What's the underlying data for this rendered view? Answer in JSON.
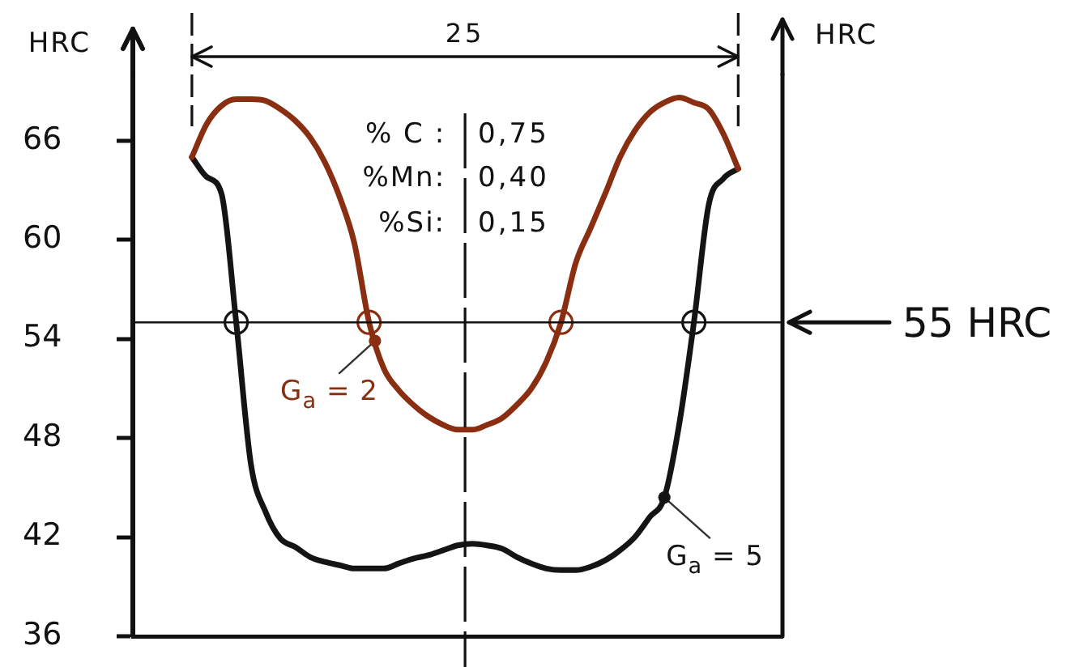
{
  "chart_data": {
    "type": "line",
    "ylabel": "HRC",
    "y2label": "HRC",
    "annotations": [
      "25",
      "% C :",
      "0,75",
      "%Mn:",
      "0,40",
      "%Si:",
      "0,15"
    ],
    "categories": [
      null,
      null,
      null,
      null,
      null,
      null,
      null,
      null,
      null,
      null,
      null,
      null,
      null,
      null,
      null,
      null,
      null,
      null,
      null,
      null,
      null,
      null,
      null,
      null,
      null,
      null,
      null,
      null,
      null,
      null,
      null,
      null,
      null,
      null,
      null,
      null,
      null,
      null,
      null,
      null,
      null,
      null,
      null,
      null,
      null
    ],
    "series": [
      {
        "name": "G$_{a}$ = 2",
        "color": "#8a2e12",
        "values": [
          null,
          null,
          null,
          null,
          65,
          67,
          68.1,
          68.5,
          68.5,
          68.4,
          67.9,
          67.2,
          66.2,
          64.7,
          62.6,
          59.8,
          55,
          52.2,
          50.9,
          50,
          49.3,
          48.8,
          48.5,
          48.5,
          48.8,
          49.2,
          50,
          51,
          52.6,
          55,
          58.6,
          60.7,
          62.8,
          65,
          66.6,
          67.7,
          68.3,
          68.6,
          68.3,
          67.9,
          66.4,
          64.3,
          null,
          null,
          null
        ]
      },
      {
        "name": "G$_{a}$ = 5",
        "color": "#141414",
        "values": [
          null,
          null,
          null,
          null,
          65,
          63.8,
          62.8,
          55,
          46.4,
          43.5,
          41.9,
          41.4,
          40.8,
          40.5,
          40.3,
          40.1,
          40.1,
          40.1,
          40.4,
          40.7,
          40.9,
          41.2,
          41.5,
          41.6,
          41.5,
          41.3,
          40.8,
          40.4,
          40.1,
          40,
          40,
          40.2,
          40.6,
          41.2,
          42,
          43.2,
          44.4,
          48.8,
          55,
          62.1,
          63.7,
          64.3,
          null,
          null,
          null
        ]
      },
      {
        "type": "scatter",
        "marker": "circle",
        "color": "#8a2e12",
        "values": [
          null,
          null,
          null,
          null,
          null,
          null,
          null,
          null,
          null,
          null,
          null,
          null,
          null,
          null,
          null,
          null,
          55,
          null,
          null,
          null,
          null,
          null,
          null,
          null,
          null,
          null,
          null,
          null,
          null,
          55,
          null,
          null,
          null,
          null,
          null,
          null,
          null,
          null,
          null,
          null,
          null,
          null,
          null,
          null,
          null
        ]
      },
      {
        "type": "scatter",
        "marker": "circle",
        "color": "#141414",
        "values": [
          null,
          null,
          null,
          null,
          null,
          null,
          null,
          55,
          null,
          null,
          null,
          null,
          null,
          null,
          null,
          null,
          null,
          null,
          null,
          null,
          null,
          null,
          null,
          null,
          null,
          null,
          null,
          null,
          null,
          null,
          null,
          null,
          null,
          null,
          null,
          null,
          null,
          null,
          55,
          null,
          null,
          null,
          null,
          null,
          null
        ]
      }
    ],
    "ylim": [
      36,
      70
    ],
    "yticks": [
      36,
      42,
      48,
      54,
      60,
      66
    ],
    "ref_lines": [
      {
        "axis": "y",
        "value": 55,
        "label": "55 HRC"
      }
    ],
    "tick_labels": "y"
  }
}
